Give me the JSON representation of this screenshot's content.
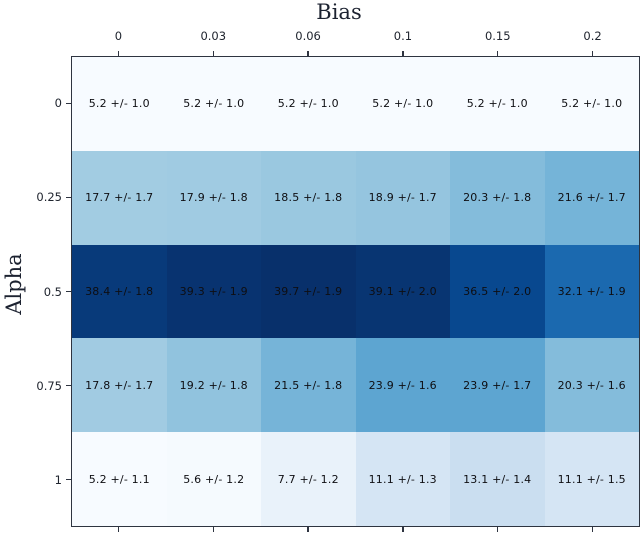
{
  "figure": {
    "title": "Bias",
    "y_axis_label": "Alpha"
  },
  "chart_data": {
    "type": "heatmap",
    "title": "Bias",
    "xlabel": "Bias",
    "ylabel": "Alpha",
    "x_tick_labels": [
      "0",
      "0.03",
      "0.06",
      "0.1",
      "0.15",
      "0.2"
    ],
    "y_tick_labels": [
      "0",
      "0.25",
      "0.5",
      "0.75",
      "1"
    ],
    "values": [
      [
        5.2,
        5.2,
        5.2,
        5.2,
        5.2,
        5.2
      ],
      [
        17.7,
        17.9,
        18.5,
        18.9,
        20.3,
        21.6
      ],
      [
        38.4,
        39.3,
        39.7,
        39.1,
        36.5,
        32.1
      ],
      [
        17.8,
        19.2,
        21.5,
        23.9,
        23.9,
        20.3
      ],
      [
        5.2,
        5.6,
        7.7,
        11.1,
        13.1,
        11.1
      ]
    ],
    "errors": [
      [
        1.0,
        1.0,
        1.0,
        1.0,
        1.0,
        1.0
      ],
      [
        1.7,
        1.8,
        1.8,
        1.7,
        1.8,
        1.7
      ],
      [
        1.8,
        1.9,
        1.9,
        2.0,
        2.0,
        1.9
      ],
      [
        1.7,
        1.8,
        1.8,
        1.6,
        1.7,
        1.6
      ],
      [
        1.1,
        1.2,
        1.2,
        1.3,
        1.4,
        1.5
      ]
    ],
    "annotation_format": "{value} +/- {error}",
    "vmin": 5.2,
    "vmax": 39.7,
    "colormap": {
      "name": "Blues",
      "stops": [
        "#f7fbff",
        "#deebf7",
        "#c6dbef",
        "#9ecae1",
        "#6baed6",
        "#4292c6",
        "#2171b5",
        "#08519c",
        "#08306b"
      ]
    },
    "colors": {
      "cell_text": "#0e0e12",
      "tick_label": "#20252f",
      "axis_line": "#2e3440",
      "background": "#ffffff"
    },
    "legend": "none",
    "grid": false
  }
}
